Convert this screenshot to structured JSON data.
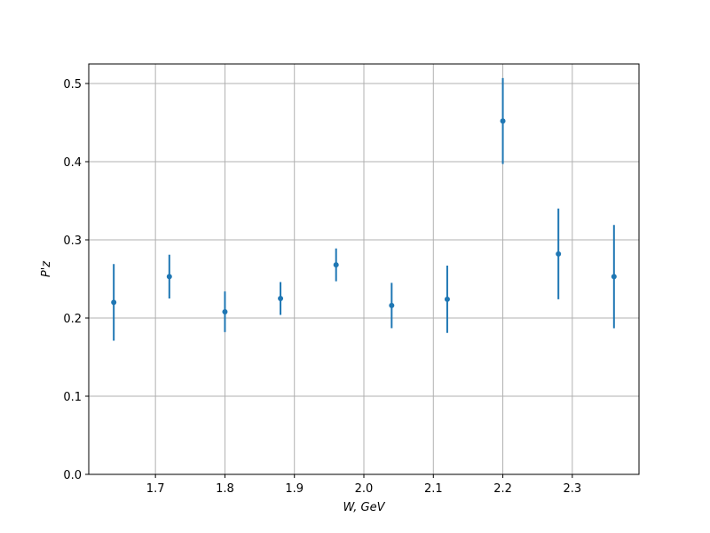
{
  "chart_data": {
    "type": "errorbar",
    "xlabel": "W, GeV",
    "ylabel": "P'z",
    "x": [
      1.64,
      1.72,
      1.8,
      1.88,
      1.96,
      2.04,
      2.12,
      2.2,
      2.28,
      2.36
    ],
    "values": [
      0.22,
      0.253,
      0.208,
      0.225,
      0.268,
      0.216,
      0.224,
      0.452,
      0.282,
      0.253
    ],
    "errors": [
      0.049,
      0.028,
      0.026,
      0.021,
      0.021,
      0.029,
      0.043,
      0.055,
      0.058,
      0.066
    ],
    "color": "#1f77b4",
    "xlim": [
      1.604,
      2.396
    ],
    "ylim": [
      0,
      0.525
    ],
    "xticks": [
      1.7,
      1.8,
      1.9,
      {
        "value": 2.0,
        "label": "2.0"
      },
      2.1,
      2.2,
      2.3
    ],
    "yticks": [
      {
        "value": 0,
        "label": "0.0"
      },
      0.1,
      0.2,
      0.3,
      0.4,
      0.5
    ],
    "grid": true
  }
}
